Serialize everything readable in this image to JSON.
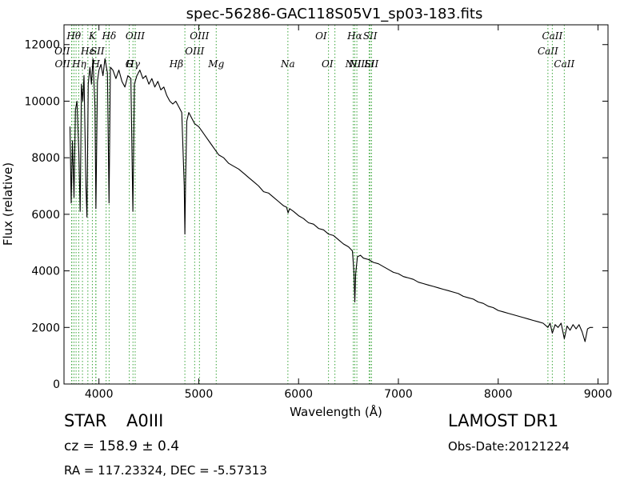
{
  "chart_data": {
    "type": "line",
    "title": "spec-56286-GAC118S05V1_sp03-183.fits",
    "xlabel": "Wavelength (Å)",
    "ylabel": "Flux (relative)",
    "xlim": [
      3650,
      9100
    ],
    "ylim": [
      0,
      12700
    ],
    "xticks": [
      4000,
      5000,
      6000,
      7000,
      8000,
      9000
    ],
    "yticks": [
      0,
      2000,
      4000,
      6000,
      8000,
      10000,
      12000
    ],
    "series": [
      {
        "color": "#000000",
        "points": [
          [
            3710,
            9100
          ],
          [
            3722,
            6400
          ],
          [
            3735,
            8600
          ],
          [
            3750,
            6600
          ],
          [
            3765,
            9700
          ],
          [
            3780,
            10000
          ],
          [
            3798,
            8200
          ],
          [
            3812,
            6100
          ],
          [
            3825,
            10600
          ],
          [
            3838,
            10000
          ],
          [
            3850,
            10900
          ],
          [
            3870,
            7000
          ],
          [
            3880,
            5900
          ],
          [
            3893,
            10600
          ],
          [
            3910,
            11200
          ],
          [
            3925,
            10600
          ],
          [
            3940,
            11500
          ],
          [
            3960,
            9800
          ],
          [
            3970,
            6200
          ],
          [
            3985,
            10700
          ],
          [
            4000,
            11100
          ],
          [
            4020,
            11300
          ],
          [
            4040,
            10900
          ],
          [
            4060,
            11500
          ],
          [
            4085,
            11000
          ],
          [
            4101,
            6400
          ],
          [
            4115,
            11200
          ],
          [
            4140,
            11100
          ],
          [
            4170,
            10800
          ],
          [
            4200,
            11100
          ],
          [
            4230,
            10700
          ],
          [
            4260,
            10500
          ],
          [
            4290,
            10900
          ],
          [
            4320,
            10800
          ],
          [
            4340,
            6100
          ],
          [
            4355,
            10600
          ],
          [
            4380,
            10900
          ],
          [
            4410,
            11100
          ],
          [
            4440,
            10800
          ],
          [
            4470,
            10900
          ],
          [
            4500,
            10600
          ],
          [
            4530,
            10800
          ],
          [
            4560,
            10500
          ],
          [
            4590,
            10700
          ],
          [
            4620,
            10400
          ],
          [
            4650,
            10500
          ],
          [
            4680,
            10200
          ],
          [
            4710,
            10000
          ],
          [
            4740,
            9900
          ],
          [
            4770,
            10000
          ],
          [
            4800,
            9800
          ],
          [
            4830,
            9600
          ],
          [
            4855,
            7000
          ],
          [
            4861,
            5300
          ],
          [
            4868,
            7200
          ],
          [
            4880,
            9300
          ],
          [
            4900,
            9600
          ],
          [
            4930,
            9400
          ],
          [
            4960,
            9200
          ],
          [
            5000,
            9100
          ],
          [
            5040,
            8900
          ],
          [
            5080,
            8700
          ],
          [
            5120,
            8500
          ],
          [
            5160,
            8300
          ],
          [
            5200,
            8100
          ],
          [
            5250,
            8000
          ],
          [
            5300,
            7800
          ],
          [
            5350,
            7700
          ],
          [
            5400,
            7600
          ],
          [
            5450,
            7450
          ],
          [
            5500,
            7300
          ],
          [
            5550,
            7150
          ],
          [
            5600,
            7000
          ],
          [
            5650,
            6800
          ],
          [
            5700,
            6750
          ],
          [
            5750,
            6600
          ],
          [
            5800,
            6450
          ],
          [
            5850,
            6300
          ],
          [
            5880,
            6250
          ],
          [
            5895,
            6050
          ],
          [
            5910,
            6200
          ],
          [
            5950,
            6100
          ],
          [
            6000,
            5950
          ],
          [
            6050,
            5850
          ],
          [
            6100,
            5700
          ],
          [
            6150,
            5650
          ],
          [
            6200,
            5500
          ],
          [
            6250,
            5450
          ],
          [
            6300,
            5300
          ],
          [
            6350,
            5250
          ],
          [
            6400,
            5100
          ],
          [
            6450,
            4950
          ],
          [
            6500,
            4850
          ],
          [
            6540,
            4700
          ],
          [
            6555,
            3900
          ],
          [
            6563,
            2900
          ],
          [
            6572,
            3900
          ],
          [
            6590,
            4500
          ],
          [
            6620,
            4550
          ],
          [
            6650,
            4450
          ],
          [
            6700,
            4400
          ],
          [
            6750,
            4300
          ],
          [
            6800,
            4250
          ],
          [
            6850,
            4150
          ],
          [
            6900,
            4050
          ],
          [
            6950,
            3950
          ],
          [
            7000,
            3900
          ],
          [
            7050,
            3800
          ],
          [
            7100,
            3750
          ],
          [
            7150,
            3700
          ],
          [
            7200,
            3600
          ],
          [
            7250,
            3550
          ],
          [
            7300,
            3500
          ],
          [
            7350,
            3450
          ],
          [
            7400,
            3400
          ],
          [
            7450,
            3350
          ],
          [
            7500,
            3300
          ],
          [
            7550,
            3250
          ],
          [
            7600,
            3200
          ],
          [
            7650,
            3100
          ],
          [
            7700,
            3050
          ],
          [
            7750,
            3000
          ],
          [
            7800,
            2900
          ],
          [
            7850,
            2850
          ],
          [
            7900,
            2750
          ],
          [
            7950,
            2700
          ],
          [
            8000,
            2600
          ],
          [
            8050,
            2550
          ],
          [
            8100,
            2500
          ],
          [
            8150,
            2450
          ],
          [
            8200,
            2400
          ],
          [
            8250,
            2350
          ],
          [
            8300,
            2300
          ],
          [
            8350,
            2250
          ],
          [
            8400,
            2200
          ],
          [
            8450,
            2150
          ],
          [
            8498,
            2000
          ],
          [
            8520,
            2150
          ],
          [
            8542,
            1800
          ],
          [
            8570,
            2100
          ],
          [
            8600,
            2000
          ],
          [
            8630,
            2150
          ],
          [
            8662,
            1600
          ],
          [
            8690,
            2050
          ],
          [
            8720,
            1900
          ],
          [
            8750,
            2100
          ],
          [
            8780,
            1950
          ],
          [
            8810,
            2100
          ],
          [
            8840,
            1850
          ],
          [
            8870,
            1500
          ],
          [
            8895,
            1950
          ],
          [
            8920,
            2000
          ],
          [
            8950,
            2000
          ]
        ]
      }
    ],
    "lines": [
      {
        "x": 3726,
        "label": "OII",
        "row": 2,
        "anchor": "right"
      },
      {
        "x": 3729,
        "label": "OII",
        "row": 3,
        "anchor": "right"
      },
      {
        "x": 3750,
        "label": "",
        "row": 0,
        "anchor": "center"
      },
      {
        "x": 3771,
        "label": "",
        "row": 0,
        "anchor": "center"
      },
      {
        "x": 3798,
        "label": "",
        "row": 0,
        "anchor": "center"
      },
      {
        "x": 3835,
        "label": "Hθ",
        "row": 1,
        "anchor": "right"
      },
      {
        "x": 3889,
        "label": "Hη",
        "row": 3,
        "anchor": "right"
      },
      {
        "x": 3934,
        "label": "K",
        "row": 1,
        "anchor": "center"
      },
      {
        "x": 3970,
        "label": "Hε",
        "row": 2,
        "anchor": "right"
      },
      {
        "x": 3968,
        "label": "H",
        "row": 3,
        "anchor": "center"
      },
      {
        "x": 4072,
        "label": "SII",
        "row": 2,
        "anchor": "right"
      },
      {
        "x": 4102,
        "label": "Hδ",
        "row": 1,
        "anchor": "center"
      },
      {
        "x": 4304,
        "label": "G",
        "row": 4,
        "anchor": "center"
      },
      {
        "x": 4341,
        "label": "Hγ",
        "row": 3,
        "anchor": "center"
      },
      {
        "x": 4363,
        "label": "OIII",
        "row": 1,
        "anchor": "center"
      },
      {
        "x": 4861,
        "label": "Hβ",
        "row": 4,
        "anchor": "right"
      },
      {
        "x": 4959,
        "label": "OIII",
        "row": 2,
        "anchor": "center"
      },
      {
        "x": 5007,
        "label": "OIII",
        "row": 1,
        "anchor": "center"
      },
      {
        "x": 5175,
        "label": "Mg",
        "row": 4,
        "anchor": "center"
      },
      {
        "x": 5893,
        "label": "Na",
        "row": 3,
        "anchor": "center"
      },
      {
        "x": 6300,
        "label": "OI",
        "row": 1,
        "anchor": "right"
      },
      {
        "x": 6364,
        "label": "OI",
        "row": 4,
        "anchor": "right"
      },
      {
        "x": 6548,
        "label": "NII",
        "row": 3,
        "anchor": "center"
      },
      {
        "x": 6563,
        "label": "Hα",
        "row": 1,
        "anchor": "center"
      },
      {
        "x": 6584,
        "label": "NII",
        "row": 4,
        "anchor": "center"
      },
      {
        "x": 6707,
        "label": "Li",
        "row": 3,
        "anchor": "center"
      },
      {
        "x": 6717,
        "label": "SII",
        "row": 1,
        "anchor": "center"
      },
      {
        "x": 6731,
        "label": "SII",
        "row": 4,
        "anchor": "center"
      },
      {
        "x": 8498,
        "label": "CaII",
        "row": 2,
        "anchor": "center"
      },
      {
        "x": 8542,
        "label": "CaII",
        "row": 1,
        "anchor": "center"
      },
      {
        "x": 8662,
        "label": "CaII",
        "row": 4,
        "anchor": "center"
      }
    ],
    "grid": false,
    "legend": "none"
  },
  "info": {
    "class_label": "STAR",
    "subclass": "A0III",
    "survey": "LAMOST DR1",
    "redshift": "cz = 158.9 ± 0.4",
    "obs_date": "Obs-Date:20121224",
    "coords": "RA = 117.23324, DEC = -5.57313"
  }
}
